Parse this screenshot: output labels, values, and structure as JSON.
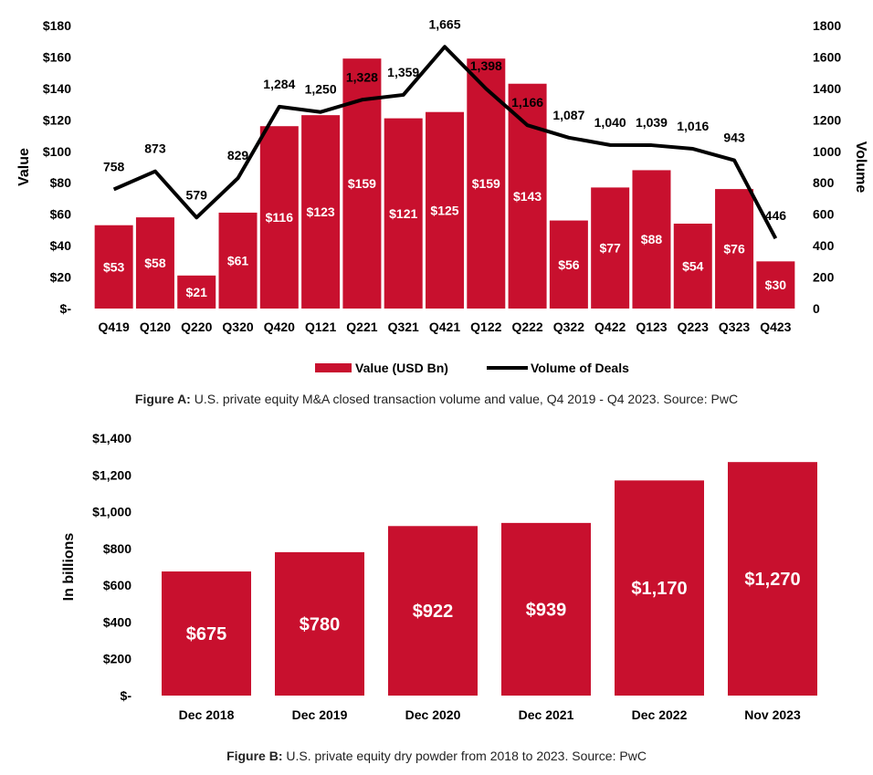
{
  "chart_data": [
    {
      "type": "bar",
      "figure_label": "Figure A:",
      "caption": "U.S. private equity M&A closed transaction volume  and value, Q4 2019 - Q4 2023. Source: PwC",
      "categories": [
        "Q419",
        "Q120",
        "Q220",
        "Q320",
        "Q420",
        "Q121",
        "Q221",
        "Q321",
        "Q421",
        "Q122",
        "Q222",
        "Q322",
        "Q422",
        "Q123",
        "Q223",
        "Q323",
        "Q423"
      ],
      "ylabel": "Value",
      "y2label": "Volume",
      "ylim": [
        0,
        180
      ],
      "y2lim": [
        0,
        1800
      ],
      "yticks": [
        "$-",
        "$20",
        "$40",
        "$60",
        "$80",
        "$100",
        "$120",
        "$140",
        "$160",
        "$180"
      ],
      "y2ticks": [
        "0",
        "200",
        "400",
        "600",
        "800",
        "1000",
        "1200",
        "1400",
        "1600",
        "1800"
      ],
      "legend_position": "bottom",
      "series": [
        {
          "name": "Value (USD Bn)",
          "kind": "bar",
          "color": "#c8102e",
          "values": [
            53,
            58,
            21,
            61,
            116,
            123,
            159,
            121,
            125,
            159,
            143,
            56,
            77,
            88,
            54,
            76,
            30
          ],
          "labels": [
            "$53",
            "$58",
            "$21",
            "$61",
            "$116",
            "$123",
            "$159",
            "$121",
            "$125",
            "$159",
            "$143",
            "$56",
            "$77",
            "$88",
            "$54",
            "$76",
            "$30"
          ]
        },
        {
          "name": "Volume of Deals",
          "kind": "line",
          "axis": "secondary",
          "color": "#000000",
          "values": [
            758,
            873,
            579,
            829,
            1284,
            1250,
            1328,
            1359,
            1665,
            1398,
            1166,
            1087,
            1040,
            1039,
            1016,
            943,
            446
          ],
          "labels": [
            "758",
            "873",
            "579",
            "829",
            "1,284",
            "1,250",
            "1,328",
            "1,359",
            "1,665",
            "1,398",
            "1,166",
            "1,087",
            "1,040",
            "1,039",
            "1,016",
            "943",
            "446"
          ]
        }
      ]
    },
    {
      "type": "bar",
      "figure_label": "Figure B:",
      "caption": "U.S. private equity dry powder  from 2018 to 2023. Source: PwC",
      "categories": [
        "Dec 2018",
        "Dec 2019",
        "Dec 2020",
        "Dec 2021",
        "Dec 2022",
        "Nov 2023"
      ],
      "ylabel": "In billions",
      "ylim": [
        0,
        1400
      ],
      "yticks": [
        "$-",
        "$200",
        "$400",
        "$600",
        "$800",
        "$1,000",
        "$1,200",
        "$1,400"
      ],
      "series": [
        {
          "color": "#c8102e",
          "values": [
            675,
            780,
            922,
            939,
            1170,
            1270
          ],
          "labels": [
            "$675",
            "$780",
            "$922",
            "$939",
            "$1,170",
            "$1,270"
          ]
        }
      ]
    }
  ]
}
